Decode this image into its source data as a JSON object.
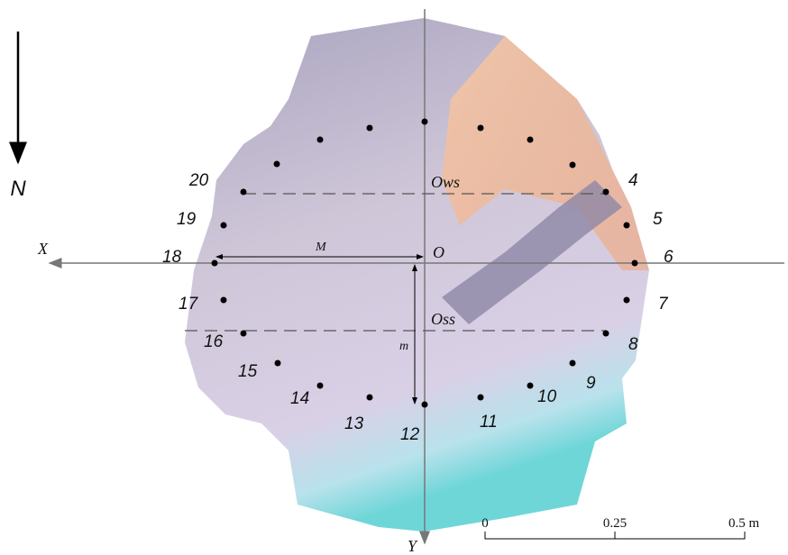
{
  "labels": {
    "north": "N",
    "x_axis": "X",
    "y_axis": "Y",
    "origin": "O",
    "ows": "Ows",
    "oss": "Oss",
    "big_m": "M",
    "small_m": "m"
  },
  "point_labels": [
    "4",
    "5",
    "6",
    "7",
    "8",
    "9",
    "10",
    "11",
    "12",
    "13",
    "14",
    "15",
    "16",
    "17",
    "18",
    "19",
    "20"
  ],
  "scale_bar": {
    "ticks": [
      "0",
      "0.25",
      "0.5 m"
    ]
  }
}
